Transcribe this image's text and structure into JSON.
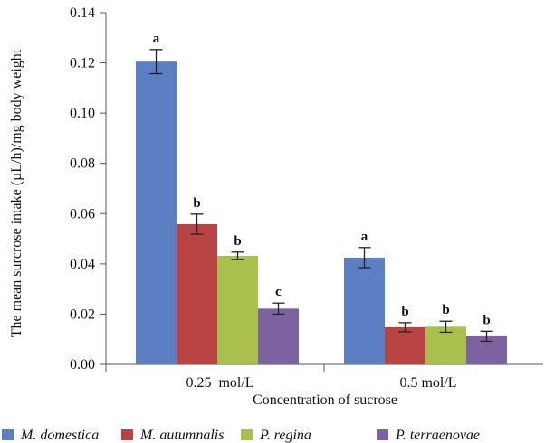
{
  "chart_data": {
    "type": "bar",
    "categories": [
      "0.25  mol/L",
      "0.5 mol/L"
    ],
    "series": [
      {
        "name": "M. domestica",
        "color": "#5b7fc2",
        "values": [
          0.1205,
          0.0425
        ],
        "errors": [
          0.0048,
          0.004
        ],
        "letters": [
          "a",
          "a"
        ]
      },
      {
        "name": "M. autumnalis",
        "color": "#b74342",
        "values": [
          0.0558,
          0.0148
        ],
        "errors": [
          0.004,
          0.0018
        ],
        "letters": [
          "b",
          "b"
        ]
      },
      {
        "name": "P. regina",
        "color": "#a9c04d",
        "values": [
          0.0432,
          0.015
        ],
        "errors": [
          0.0015,
          0.0022
        ],
        "letters": [
          "b",
          "b"
        ]
      },
      {
        "name": "P. terraenovae",
        "color": "#7c62a1",
        "values": [
          0.0222,
          0.0112
        ],
        "errors": [
          0.0022,
          0.002
        ],
        "letters": [
          "c",
          "b"
        ]
      }
    ],
    "ylabel": "The mean surcrose intake (µL/h)/mg body weight",
    "xlabel": "Concentration of sucrose",
    "ylim": [
      0,
      0.14
    ],
    "yticks": [
      "0.00",
      "0.02",
      "0.04",
      "0.06",
      "0.08",
      "0.10",
      "0.12",
      "0.14"
    ],
    "grid": false,
    "legend_position": "bottom"
  }
}
